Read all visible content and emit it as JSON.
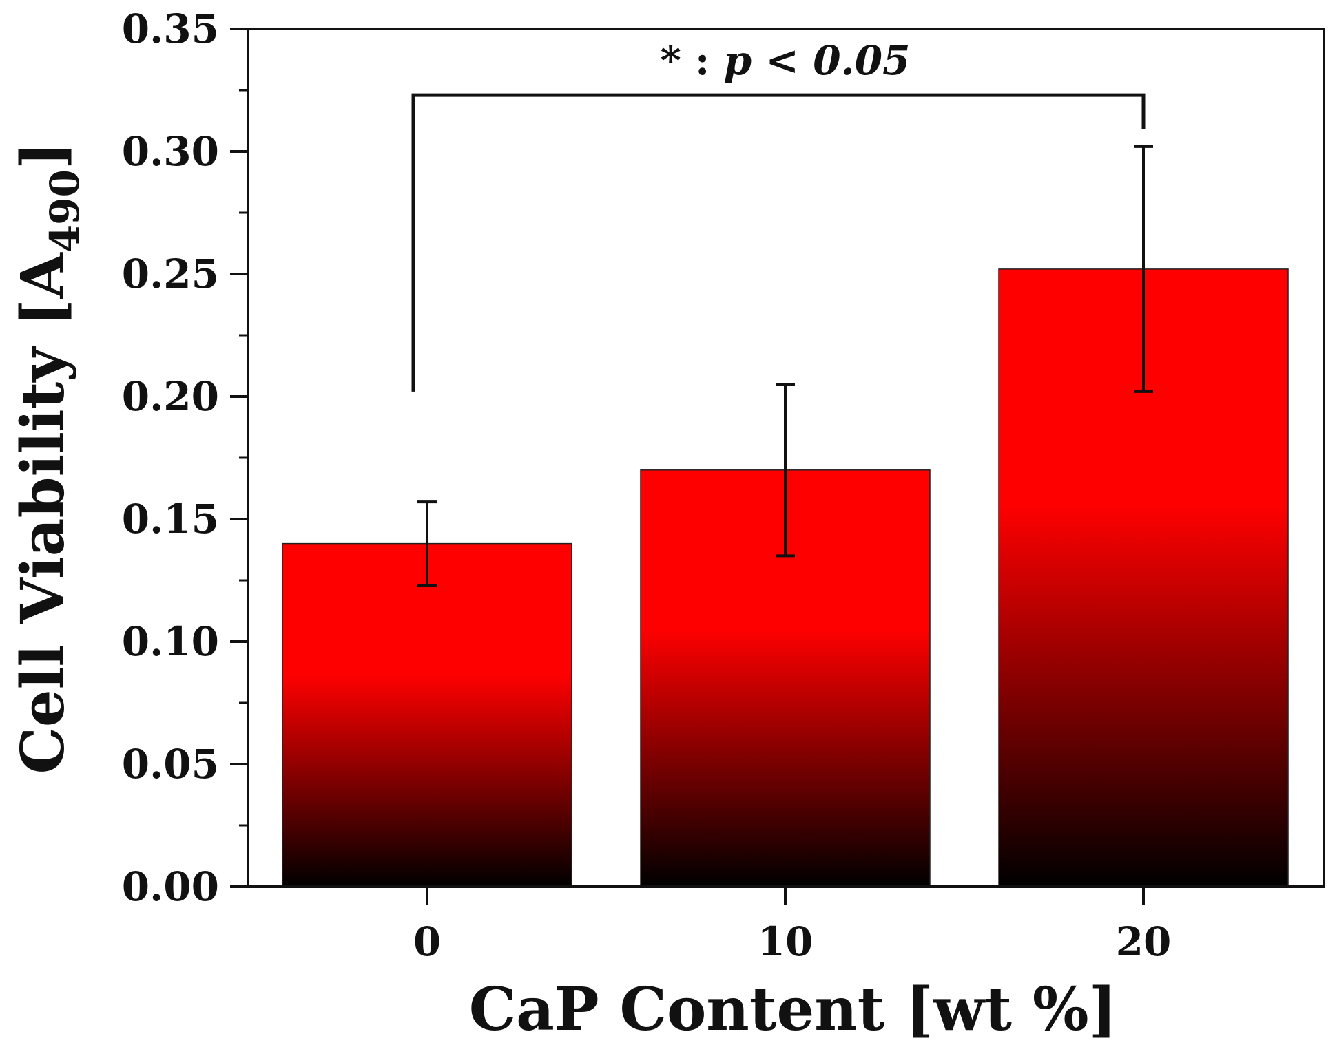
{
  "chart_data": {
    "type": "bar",
    "categories": [
      "0",
      "10",
      "20"
    ],
    "values": [
      0.14,
      0.17,
      0.252
    ],
    "errors": [
      0.017,
      0.035,
      0.05
    ],
    "xlabel": "CaP Content [wt %]",
    "ylabel_main": "Cell Viability [A",
    "ylabel_sub": "490",
    "ylabel_close": "]",
    "ylim": [
      0,
      0.35
    ],
    "yticks": [
      "0.00",
      "0.05",
      "0.10",
      "0.15",
      "0.20",
      "0.25",
      "0.30",
      "0.35"
    ],
    "annotation": {
      "star": "*",
      "colon": " : ",
      "p": "p",
      "rest": " < 0.05",
      "from_category": "0",
      "to_category": "20",
      "bracket_y": 0.323
    },
    "colors": {
      "bar_top": "#ff0000",
      "bar_mid": "#ff0000",
      "bar_bottom": "#000000",
      "axis": "#111111"
    }
  }
}
